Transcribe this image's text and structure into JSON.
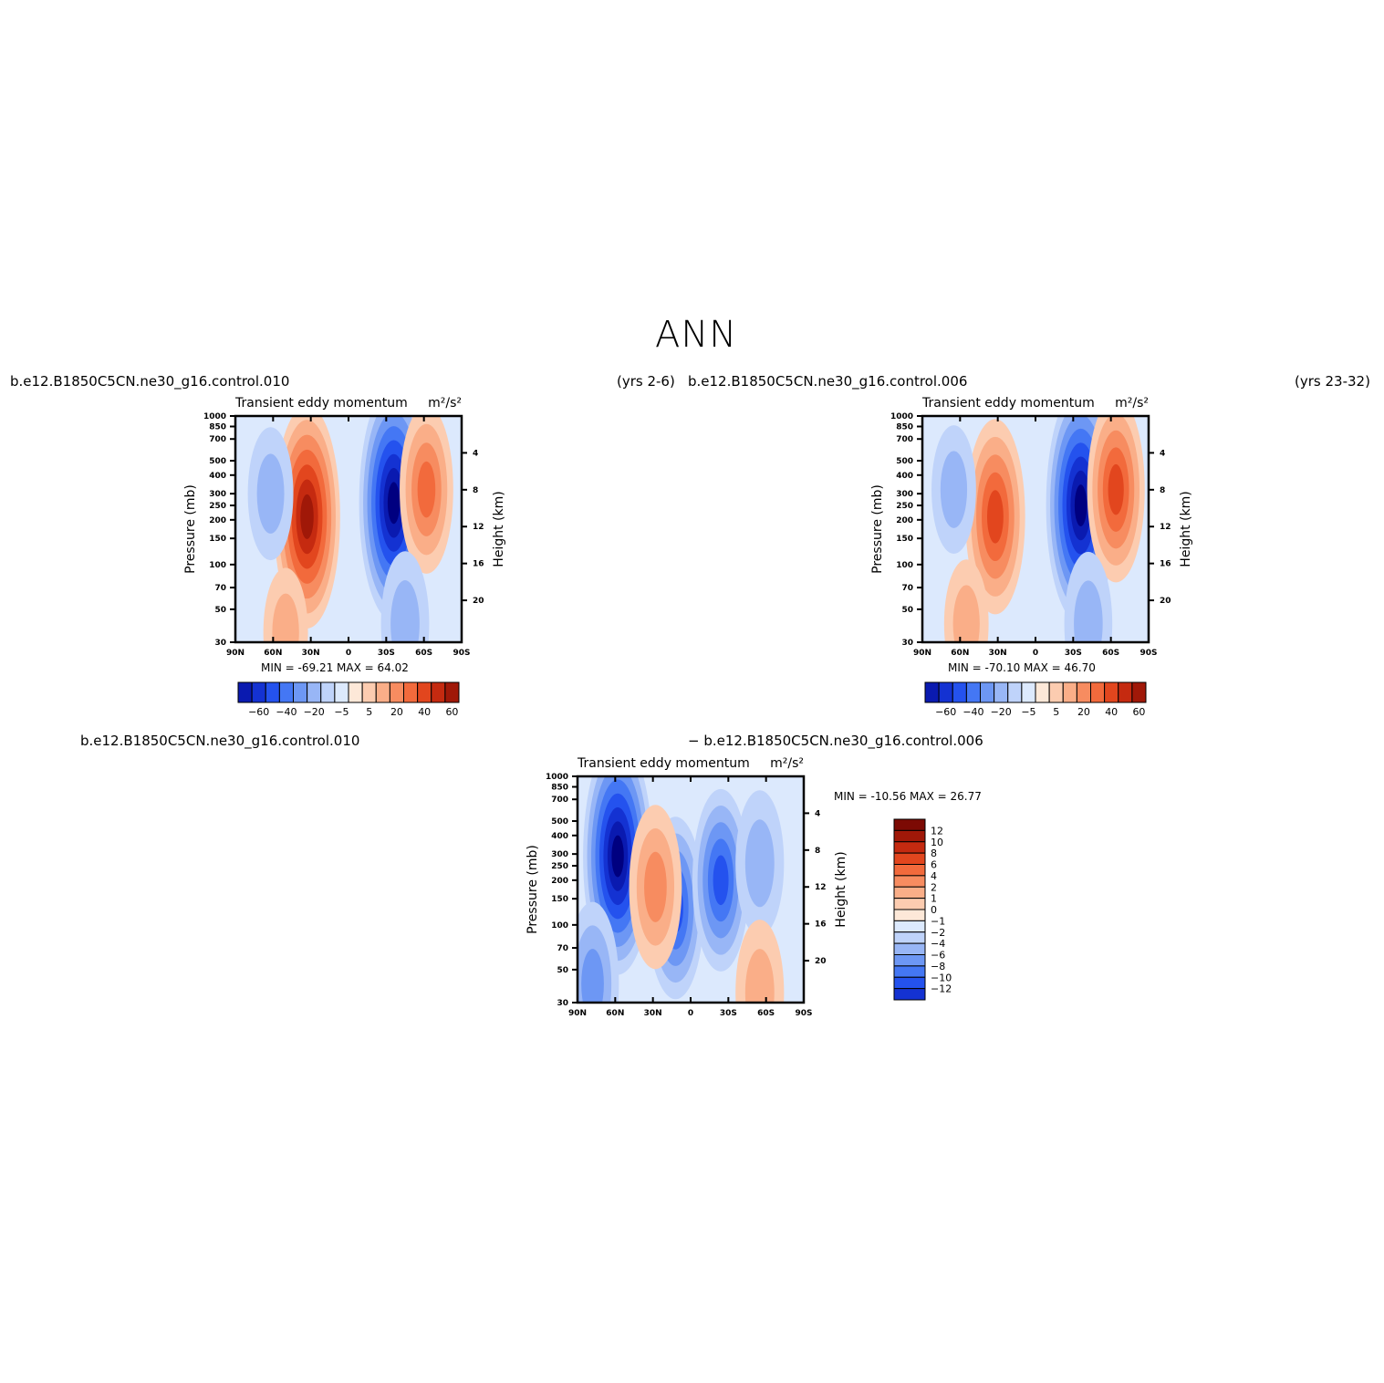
{
  "figure": {
    "title": "ANN"
  },
  "colors": {
    "neg": [
      "#000080",
      "#0A1AB0",
      "#1432D2",
      "#2452EE",
      "#4477F4",
      "#6D97F4",
      "#98B6F6",
      "#BFD3FA",
      "#DCE9FD"
    ],
    "pos": [
      "#FDE8D8",
      "#FCCCB0",
      "#FAAE88",
      "#F78C60",
      "#F26A3C",
      "#E2461E",
      "#C52A10",
      "#A01808",
      "#7C0A04"
    ]
  },
  "chart_data": [
    {
      "type": "heatmap",
      "case_name": "b.e12.B1850C5CN.ne30_g16.control.010",
      "years": "(yrs 2-6)",
      "title": "Transient eddy momentum",
      "units": "m²/s²",
      "ylabel": "Pressure (mb)",
      "ylabel_right": "Height (km)",
      "x_ticks": [
        "90N",
        "60N",
        "30N",
        "0",
        "30S",
        "60S",
        "90S"
      ],
      "y_ticks": [
        "30",
        "50",
        "70",
        "100",
        "150",
        "200",
        "250",
        "300",
        "400",
        "500",
        "700",
        "850",
        "1000"
      ],
      "y_right_ticks": [
        "20",
        "16",
        "12",
        "8",
        "4"
      ],
      "ylim": [
        1000,
        30
      ],
      "stats": {
        "min_label": "MIN =",
        "min": "-69.21",
        "max_label": "MAX =",
        "max": "64.02"
      },
      "colorbar": [
        "-60",
        "-40",
        "-20",
        "-5",
        "5",
        "20",
        "40",
        "60"
      ],
      "features": [
        {
          "lat": 33,
          "p": 210,
          "value": 58
        },
        {
          "lat": -36,
          "p": 260,
          "value": -65
        },
        {
          "lat": -62,
          "p": 320,
          "value": 30
        },
        {
          "lat": 62,
          "p": 300,
          "value": -12
        },
        {
          "lat": -45,
          "p": 40,
          "value": -18
        },
        {
          "lat": 50,
          "p": 35,
          "value": 10
        }
      ]
    },
    {
      "type": "heatmap",
      "case_name": "b.e12.B1850C5CN.ne30_g16.control.006",
      "years": "(yrs 23-32)",
      "title": "Transient eddy momentum",
      "units": "m²/s²",
      "ylabel": "Pressure (mb)",
      "ylabel_right": "Height (km)",
      "x_ticks": [
        "90N",
        "60N",
        "30N",
        "0",
        "30S",
        "60S",
        "90S"
      ],
      "y_ticks": [
        "30",
        "50",
        "70",
        "100",
        "150",
        "200",
        "250",
        "300",
        "400",
        "500",
        "700",
        "850",
        "1000"
      ],
      "y_right_ticks": [
        "20",
        "16",
        "12",
        "8",
        "4"
      ],
      "ylim": [
        1000,
        30
      ],
      "stats": {
        "min_label": "MIN =",
        "min": "-70.10",
        "max_label": "MAX =",
        "max": "46.70"
      },
      "colorbar": [
        "-60",
        "-40",
        "-20",
        "-5",
        "5",
        "20",
        "40",
        "60"
      ],
      "features": [
        {
          "lat": 32,
          "p": 210,
          "value": 45
        },
        {
          "lat": -36,
          "p": 250,
          "value": -67
        },
        {
          "lat": -64,
          "p": 320,
          "value": 40
        },
        {
          "lat": 65,
          "p": 320,
          "value": -10
        },
        {
          "lat": -42,
          "p": 40,
          "value": -18
        },
        {
          "lat": 55,
          "p": 40,
          "value": 10
        }
      ]
    },
    {
      "type": "heatmap",
      "case_name": "b.e12.B1850C5CN.ne30_g16.control.010",
      "minus_label": "− b.e12.B1850C5CN.ne30_g16.control.006",
      "title": "Transient eddy momentum",
      "units": "m²/s²",
      "ylabel": "Pressure (mb)",
      "ylabel_right": "Height (km)",
      "x_ticks": [
        "90N",
        "60N",
        "30N",
        "0",
        "30S",
        "60S",
        "90S"
      ],
      "y_ticks": [
        "30",
        "50",
        "70",
        "100",
        "150",
        "200",
        "250",
        "300",
        "400",
        "500",
        "700",
        "850",
        "1000"
      ],
      "y_right_ticks": [
        "20",
        "16",
        "12",
        "8",
        "4"
      ],
      "ylim": [
        1000,
        30
      ],
      "stats": {
        "min_label": "MIN =",
        "min": "-10.56",
        "max_label": "MAX =",
        "max": "26.77"
      },
      "colorbar": [
        "12",
        "10",
        "8",
        "6",
        "4",
        "2",
        "1",
        "0",
        "-1",
        "-2",
        "-4",
        "-6",
        "-8",
        "-10",
        "-12"
      ],
      "features": [
        {
          "lat": 58,
          "p": 290,
          "value": -7
        },
        {
          "lat": 78,
          "p": 40,
          "value": -3
        },
        {
          "lat": 12,
          "p": 130,
          "value": -4
        },
        {
          "lat": -24,
          "p": 200,
          "value": -4
        },
        {
          "lat": 28,
          "p": 180,
          "value": 3
        },
        {
          "lat": -55,
          "p": 260,
          "value": -2
        },
        {
          "lat": -55,
          "p": 35,
          "value": 2
        }
      ]
    }
  ]
}
